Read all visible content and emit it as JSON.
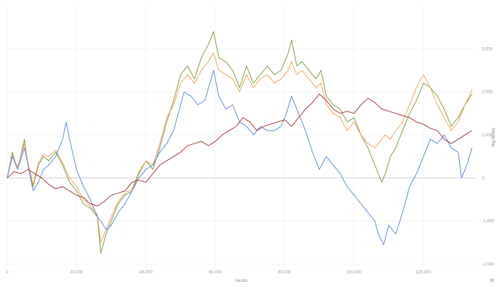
{
  "chart_data": {
    "type": "line",
    "title": "",
    "xlabel": "Hands",
    "ylabel": "Big Blinds",
    "xlim": [
      0,
      135000
    ],
    "ylim": [
      -2100,
      4000
    ],
    "x_ticks": [
      0,
      20000,
      40000,
      60000,
      80000,
      100000,
      120000
    ],
    "x_tick_labels": [
      "0",
      "20,000",
      "40,000",
      "60,000",
      "80,000",
      "100,000",
      "120,000"
    ],
    "y_ticks": [
      -2000,
      -1000,
      0,
      1000,
      2000,
      3000
    ],
    "y_tick_labels": [
      "-2,000",
      "-1,000",
      "0",
      "1,000",
      "2,000",
      "3,000"
    ],
    "grid": true,
    "legend": "none",
    "series": [
      {
        "color": "#7a9f3f",
        "x": [
          0,
          1500,
          3000,
          5000,
          6000,
          7500,
          9000,
          10500,
          12000,
          14000,
          16000,
          18000,
          20000,
          22000,
          24000,
          26000,
          27000,
          28500,
          30000,
          32000,
          34000,
          36000,
          38000,
          40000,
          42000,
          44000,
          46000,
          48000,
          50000,
          52000,
          54000,
          56000,
          58000,
          59500,
          61000,
          63000,
          65000,
          67000,
          69000,
          71000,
          73000,
          75000,
          77000,
          79000,
          81000,
          82000,
          83500,
          85000,
          87000,
          89000,
          90500,
          92000,
          94000,
          96000,
          98000,
          100000,
          102000,
          104000,
          106000,
          108000,
          109000,
          110500,
          112000,
          114000,
          116000,
          118000,
          120000,
          122000,
          124000,
          126000,
          128000,
          130000,
          132000,
          134000
        ],
        "y": [
          0,
          600,
          200,
          900,
          300,
          -200,
          300,
          500,
          400,
          600,
          300,
          -100,
          -300,
          -600,
          -700,
          -900,
          -1750,
          -1300,
          -1000,
          -600,
          -400,
          -300,
          100,
          400,
          200,
          700,
          1300,
          1800,
          2400,
          2600,
          2300,
          2800,
          3100,
          3400,
          2800,
          2700,
          2500,
          2100,
          2600,
          2200,
          2400,
          2600,
          2400,
          2500,
          2900,
          3200,
          2600,
          2700,
          2500,
          2300,
          2500,
          1900,
          1700,
          1600,
          1300,
          1400,
          1000,
          700,
          300,
          -100,
          100,
          500,
          700,
          1100,
          1500,
          1800,
          2200,
          2100,
          1900,
          1600,
          1200,
          1400,
          1700,
          1950
        ]
      },
      {
        "color": "#f2a35a",
        "x": [
          0,
          1500,
          3000,
          5000,
          6000,
          7500,
          9000,
          10500,
          12000,
          14000,
          16000,
          18000,
          20000,
          22000,
          24000,
          26000,
          27000,
          28500,
          30000,
          32000,
          34000,
          36000,
          38000,
          40000,
          42000,
          44000,
          46000,
          48000,
          50000,
          52000,
          54000,
          56000,
          58000,
          59500,
          61000,
          63000,
          65000,
          67000,
          69000,
          71000,
          73000,
          75000,
          77000,
          79000,
          81000,
          82000,
          83500,
          85000,
          87000,
          89000,
          90500,
          92000,
          94000,
          96000,
          98000,
          100000,
          102000,
          104000,
          106000,
          108000,
          109000,
          110500,
          112000,
          114000,
          116000,
          118000,
          120000,
          122000,
          124000,
          126000,
          128000,
          130000,
          132000,
          134000
        ],
        "y": [
          0,
          550,
          250,
          800,
          350,
          -150,
          350,
          550,
          500,
          650,
          350,
          0,
          -200,
          -500,
          -650,
          -850,
          -1500,
          -1200,
          -900,
          -550,
          -350,
          -250,
          150,
          400,
          300,
          800,
          1400,
          1700,
          2200,
          2400,
          2200,
          2500,
          2700,
          2900,
          2500,
          2400,
          2300,
          2000,
          2400,
          2100,
          2300,
          2400,
          2200,
          2300,
          2500,
          2700,
          2400,
          2500,
          2300,
          2100,
          2200,
          1700,
          1500,
          1400,
          1100,
          1300,
          1000,
          800,
          700,
          900,
          1000,
          900,
          1100,
          1300,
          1700,
          2100,
          2400,
          2100,
          1700,
          1400,
          1100,
          1300,
          1700,
          2050
        ]
      },
      {
        "color": "#5b8ae6",
        "x": [
          0,
          1500,
          3000,
          5000,
          6000,
          7500,
          9000,
          10500,
          12000,
          14000,
          16000,
          17000,
          18000,
          20000,
          22000,
          24000,
          26000,
          27000,
          28500,
          30000,
          32000,
          34000,
          36000,
          38000,
          40000,
          42000,
          44000,
          46000,
          48000,
          50000,
          51000,
          53000,
          55000,
          57000,
          59500,
          61000,
          63000,
          65000,
          67000,
          69000,
          71000,
          73000,
          75000,
          77000,
          79000,
          80500,
          82000,
          84000,
          86000,
          88000,
          90000,
          92000,
          94000,
          96000,
          98000,
          100000,
          102000,
          104000,
          106000,
          107000,
          108500,
          110000,
          112000,
          114000,
          116000,
          118000,
          120000,
          122000,
          124000,
          126000,
          128000,
          130000,
          131000,
          132500,
          134000
        ],
        "y": [
          0,
          500,
          200,
          700,
          300,
          -300,
          -100,
          200,
          300,
          500,
          900,
          1300,
          900,
          200,
          -200,
          -500,
          -900,
          -1000,
          -1200,
          -1100,
          -800,
          -600,
          -300,
          0,
          200,
          300,
          600,
          800,
          1100,
          1700,
          2000,
          1900,
          1700,
          1800,
          2500,
          1900,
          1600,
          1700,
          1300,
          1200,
          1000,
          1200,
          1100,
          1100,
          1200,
          1500,
          1900,
          1500,
          1100,
          600,
          200,
          500,
          300,
          100,
          -200,
          -400,
          -600,
          -800,
          -1000,
          -1300,
          -1550,
          -1100,
          -1300,
          -800,
          -200,
          100,
          500,
          900,
          800,
          1000,
          700,
          600,
          0,
          300,
          700
        ]
      },
      {
        "color": "#a33a3a",
        "x": [
          0,
          2000,
          4000,
          6000,
          8000,
          10000,
          12000,
          14000,
          16000,
          18000,
          20000,
          22000,
          24000,
          26000,
          28000,
          30000,
          32000,
          34000,
          36000,
          38000,
          40000,
          42000,
          44000,
          46000,
          48000,
          50000,
          52000,
          54000,
          56000,
          58000,
          60000,
          62000,
          64000,
          66000,
          68000,
          70000,
          72000,
          74000,
          76000,
          78000,
          80000,
          82000,
          84000,
          86000,
          88000,
          90000,
          92000,
          94000,
          96000,
          98000,
          100000,
          102000,
          104000,
          106000,
          108000,
          110000,
          112000,
          114000,
          116000,
          118000,
          120000,
          122000,
          124000,
          126000,
          128000,
          130000,
          132000,
          134000
        ],
        "y": [
          0,
          150,
          100,
          200,
          100,
          0,
          -150,
          -250,
          -200,
          -300,
          -400,
          -450,
          -600,
          -650,
          -550,
          -400,
          -350,
          -300,
          -100,
          -50,
          -100,
          100,
          300,
          400,
          500,
          600,
          750,
          800,
          850,
          750,
          850,
          1000,
          1100,
          1200,
          1400,
          1300,
          1100,
          1200,
          1250,
          1300,
          1350,
          1200,
          1400,
          1600,
          1750,
          1950,
          1800,
          1600,
          1500,
          1550,
          1500,
          1700,
          1850,
          1750,
          1600,
          1550,
          1500,
          1450,
          1400,
          1300,
          1250,
          1150,
          1100,
          900,
          800,
          900,
          1000,
          1100
        ]
      }
    ]
  },
  "ui": {
    "settings_icon": "gear-icon"
  }
}
